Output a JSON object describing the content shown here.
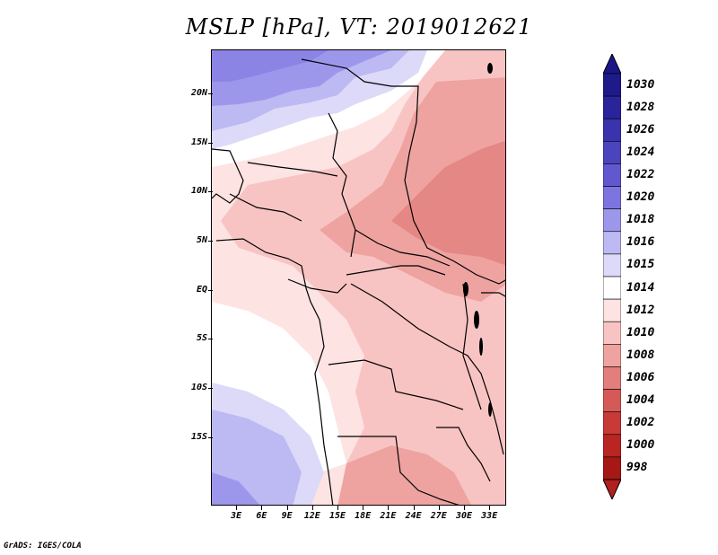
{
  "title": "MSLP [hPa], VT: 2019012621",
  "footer": "GrADS: IGES/COLA",
  "map": {
    "lon_range": [
      0,
      35
    ],
    "lat_range": [
      -22,
      24.5
    ],
    "lat_ticks": [
      {
        "lat": 20,
        "label": "20N"
      },
      {
        "lat": 15,
        "label": "15N"
      },
      {
        "lat": 10,
        "label": "10N"
      },
      {
        "lat": 5,
        "label": "5N"
      },
      {
        "lat": 0,
        "label": "EQ"
      },
      {
        "lat": -5,
        "label": "5S"
      },
      {
        "lat": -10,
        "label": "10S"
      },
      {
        "lat": -15,
        "label": "15S"
      }
    ],
    "lon_ticks": [
      {
        "lon": 3,
        "label": "3E"
      },
      {
        "lon": 6,
        "label": "6E"
      },
      {
        "lon": 9,
        "label": "9E"
      },
      {
        "lon": 12,
        "label": "12E"
      },
      {
        "lon": 15,
        "label": "15E"
      },
      {
        "lon": 18,
        "label": "18E"
      },
      {
        "lon": 21,
        "label": "21E"
      },
      {
        "lon": 24,
        "label": "24E"
      },
      {
        "lon": 27,
        "label": "27E"
      },
      {
        "lon": 30,
        "label": "30E"
      },
      {
        "lon": 33,
        "label": "33E"
      }
    ]
  },
  "colorbar": {
    "levels": [
      {
        "label": "1030",
        "color": "#1e1a8a"
      },
      {
        "label": "1028",
        "color": "#2a249b"
      },
      {
        "label": "1026",
        "color": "#3a33ad"
      },
      {
        "label": "1024",
        "color": "#4a44bd"
      },
      {
        "label": "1022",
        "color": "#6158d0"
      },
      {
        "label": "1020",
        "color": "#7d74e0"
      },
      {
        "label": "1018",
        "color": "#9d97ec"
      },
      {
        "label": "1016",
        "color": "#bdb9f2"
      },
      {
        "label": "1015",
        "color": "#dcdaf8"
      },
      {
        "label": "1014",
        "color": "#ffffff"
      },
      {
        "label": "1012",
        "color": "#fde3e2"
      },
      {
        "label": "1010",
        "color": "#f8c4c3"
      },
      {
        "label": "1008",
        "color": "#eea3a1"
      },
      {
        "label": "1006",
        "color": "#e27e7c"
      },
      {
        "label": "1004",
        "color": "#d55a57"
      },
      {
        "label": "1002",
        "color": "#c73a37"
      },
      {
        "label": "1000",
        "color": "#b82523"
      },
      {
        "label": "998",
        "color": "#a51816"
      }
    ],
    "top_arrow_color": "#1a168a",
    "bottom_arrow_color": "#b0201e"
  }
}
